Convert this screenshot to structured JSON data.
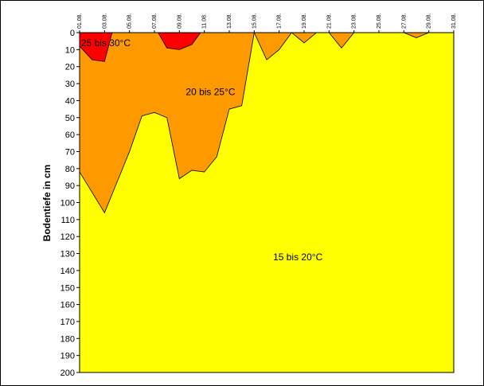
{
  "chart_data": {
    "type": "area",
    "title": "",
    "xlabel": "",
    "ylabel": "Bodentiefe in cm",
    "ylim": [
      0,
      200
    ],
    "y_inverted": true,
    "y_ticks": [
      0,
      10,
      20,
      30,
      40,
      50,
      60,
      70,
      80,
      90,
      100,
      110,
      120,
      130,
      140,
      150,
      160,
      170,
      180,
      190,
      200
    ],
    "x_ticks": [
      "01.08.",
      "03.08.",
      "05.08.",
      "07.08.",
      "09.08.",
      "11.08.",
      "13.08.",
      "15.08.",
      "17.08.",
      "19.08.",
      "21.08.",
      "23.08.",
      "25.08.",
      "27.08.",
      "29.08.",
      "31.08."
    ],
    "x_days": [
      1,
      31
    ],
    "colors": {
      "zone_15_20": "#ffff00",
      "zone_20_25": "#ff9900",
      "zone_25_30": "#ff0000",
      "plot_border": "#000000",
      "frame": "#000000"
    },
    "zones": [
      {
        "name": "15 bis 20°C",
        "color_key": "zone_15_20",
        "label_pos": {
          "day": 18.5,
          "depth": 132
        }
      },
      {
        "name": "20 bis 25°C",
        "color_key": "zone_20_25",
        "label_pos": {
          "day": 11.5,
          "depth": 35
        },
        "boundary_depth": [
          [
            1,
            82
          ],
          [
            2,
            94
          ],
          [
            3,
            106
          ],
          [
            4,
            88
          ],
          [
            5,
            70
          ],
          [
            6,
            49
          ],
          [
            7,
            47
          ],
          [
            8,
            50
          ],
          [
            9,
            86
          ],
          [
            10,
            81
          ],
          [
            11,
            82
          ],
          [
            12,
            73
          ],
          [
            13,
            45
          ],
          [
            14,
            43
          ],
          [
            15,
            0
          ],
          [
            16,
            16
          ],
          [
            17,
            10
          ],
          [
            18,
            0
          ],
          [
            19,
            6
          ],
          [
            20,
            0
          ],
          [
            21,
            0
          ],
          [
            22,
            9
          ],
          [
            23,
            0
          ],
          [
            27,
            0
          ],
          [
            28,
            3
          ],
          [
            29,
            0
          ],
          [
            31,
            0
          ]
        ]
      },
      {
        "name": "25 bis 30°C",
        "color_key": "zone_25_30",
        "label_pos": {
          "day": 3.1,
          "depth": 6
        },
        "segments": [
          [
            [
              1,
              8
            ],
            [
              2,
              16
            ],
            [
              3,
              17
            ],
            [
              3.6,
              0
            ]
          ],
          [
            [
              7.3,
              0
            ],
            [
              8,
              9
            ],
            [
              9,
              10
            ],
            [
              10,
              7
            ],
            [
              10.7,
              0
            ]
          ]
        ]
      }
    ]
  }
}
